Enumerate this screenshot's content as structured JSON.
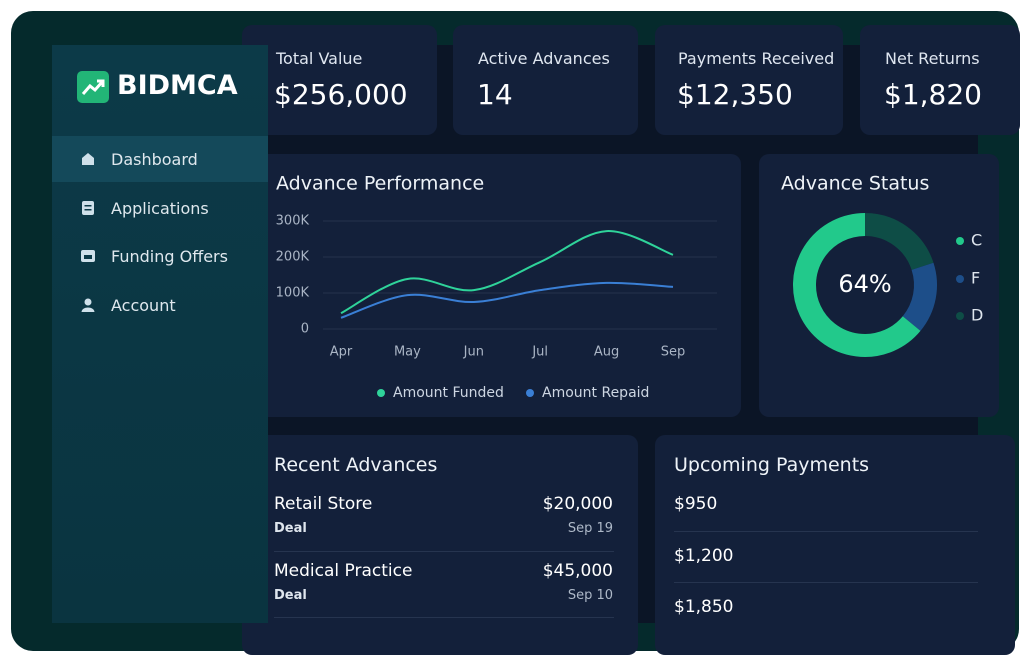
{
  "sidebar": {
    "brand": "BIDMCA",
    "nav": [
      "Dashboard",
      "Applications",
      "Funding Offers",
      "Account"
    ]
  },
  "stats": [
    {
      "label": "Total Value",
      "value": "$256,000"
    },
    {
      "label": "Active Advances",
      "value": "14"
    },
    {
      "label": "Payments Received",
      "value": "$12,350"
    },
    {
      "label": "Net Returns",
      "value": "$1,820"
    }
  ],
  "chart_data": [
    {
      "type": "line",
      "title": "Advance Performance",
      "categories": [
        "Apr",
        "May",
        "Jun",
        "Jul",
        "Aug",
        "Sep"
      ],
      "series": [
        {
          "name": "Amount Funded",
          "color": "#2fd39a",
          "values": [
            44000,
            139000,
            108000,
            186000,
            272000,
            206000
          ]
        },
        {
          "name": "Amount Repaid",
          "color": "#3a7fd5",
          "values": [
            31000,
            94000,
            75000,
            108000,
            128000,
            117000
          ]
        }
      ],
      "ylim": [
        0,
        300000
      ],
      "yticks": [
        0,
        {
          "value": 100000,
          "label": "100K"
        },
        {
          "value": 200000,
          "label": "200K"
        },
        {
          "value": 300000,
          "label": "300K"
        }
      ],
      "grid": true
    },
    {
      "type": "pie",
      "title": "Advance Status",
      "center_label": "64%",
      "series": [
        {
          "name": "C",
          "color": "#22c98b",
          "values": [
            64
          ]
        },
        {
          "name": "F",
          "color": "#1d4e89",
          "values": [
            16
          ]
        },
        {
          "name": "D",
          "color": "#0e4d46",
          "values": [
            20
          ]
        }
      ]
    }
  ],
  "recent": {
    "title": "Recent Advances",
    "rows": [
      {
        "name": "Retail Store",
        "type": "Deal",
        "amount": "$20,000",
        "date": "Sep 19"
      },
      {
        "name": "Medical Practice",
        "type": "Deal",
        "amount": "$45,000",
        "date": "Sep 10"
      }
    ]
  },
  "upcoming": {
    "title": "Upcoming Payments",
    "amounts": [
      "$950",
      "$1,200",
      "$1,850"
    ]
  }
}
